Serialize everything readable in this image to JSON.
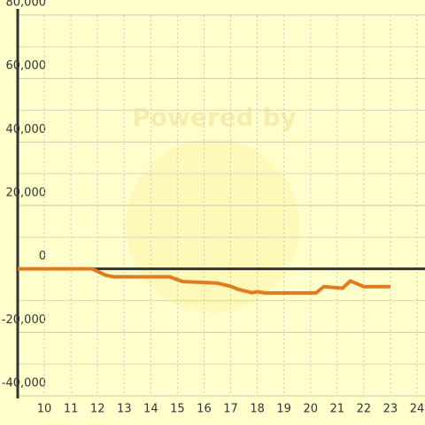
{
  "chart_data": {
    "type": "line",
    "watermark": "Powered by",
    "x": [
      9,
      11.8,
      12.3,
      12.6,
      14.7,
      15.2,
      16.5,
      17.0,
      17.3,
      17.8,
      18.0,
      18.3,
      20.2,
      20.5,
      21.2,
      21.5,
      22.0,
      23.0
    ],
    "series": [
      {
        "color": "#e07b1f",
        "values": [
          0,
          0,
          -2000,
          -2500,
          -2500,
          -4000,
          -4500,
          -5500,
          -6500,
          -7500,
          -7200,
          -7600,
          -7600,
          -5600,
          -6100,
          -3800,
          -5600,
          -5600
        ]
      }
    ],
    "xlim": [
      9,
      24.3
    ],
    "xticks": [
      10,
      11,
      12,
      13,
      14,
      15,
      16,
      17,
      18,
      19,
      20,
      21,
      22,
      23,
      24
    ],
    "ylim": [
      -40000,
      80000
    ],
    "yticks": [
      {
        "value": -40000,
        "label": "-40,000"
      },
      {
        "value": -20000,
        "label": "-20,000"
      },
      0,
      {
        "value": 20000,
        "label": "20,000"
      },
      {
        "value": 40000,
        "label": "40,000"
      },
      {
        "value": 60000,
        "label": "60,000"
      },
      {
        "value": 80000,
        "label": "80,000"
      }
    ],
    "grid": true
  }
}
